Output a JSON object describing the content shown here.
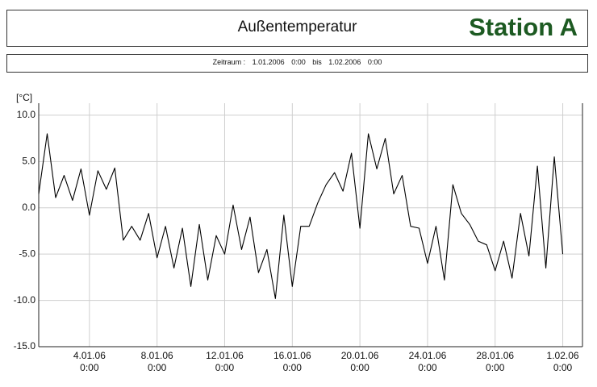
{
  "header": {
    "title": "Außentemperatur",
    "station": "Station A",
    "period": [
      "Zeitraum :",
      "1.01.2006",
      "0:00",
      "bis",
      "1.02.2006",
      "0:00"
    ]
  },
  "chart_data": {
    "type": "line",
    "y_label": "[°C]",
    "color": "#000000",
    "grid": true,
    "x": [
      "2006-01-01T00:00",
      "2006-01-01T12:00",
      "2006-01-02T00:00",
      "2006-01-02T12:00",
      "2006-01-03T00:00",
      "2006-01-03T12:00",
      "2006-01-04T00:00",
      "2006-01-04T12:00",
      "2006-01-05T00:00",
      "2006-01-05T12:00",
      "2006-01-06T00:00",
      "2006-01-06T12:00",
      "2006-01-07T00:00",
      "2006-01-07T12:00",
      "2006-01-08T00:00",
      "2006-01-08T12:00",
      "2006-01-09T00:00",
      "2006-01-09T12:00",
      "2006-01-10T00:00",
      "2006-01-10T12:00",
      "2006-01-11T00:00",
      "2006-01-11T12:00",
      "2006-01-12T00:00",
      "2006-01-12T12:00",
      "2006-01-13T00:00",
      "2006-01-13T12:00",
      "2006-01-14T00:00",
      "2006-01-14T12:00",
      "2006-01-15T00:00",
      "2006-01-15T12:00",
      "2006-01-16T00:00",
      "2006-01-16T12:00",
      "2006-01-17T00:00",
      "2006-01-17T12:00",
      "2006-01-18T00:00",
      "2006-01-18T12:00",
      "2006-01-19T00:00",
      "2006-01-19T12:00",
      "2006-01-20T00:00",
      "2006-01-20T12:00",
      "2006-01-21T00:00",
      "2006-01-21T12:00",
      "2006-01-22T00:00",
      "2006-01-22T12:00",
      "2006-01-23T00:00",
      "2006-01-23T12:00",
      "2006-01-24T00:00",
      "2006-01-24T12:00",
      "2006-01-25T00:00",
      "2006-01-25T12:00",
      "2006-01-26T00:00",
      "2006-01-26T12:00",
      "2006-01-27T00:00",
      "2006-01-27T12:00",
      "2006-01-28T00:00",
      "2006-01-28T12:00",
      "2006-01-29T00:00",
      "2006-01-29T12:00",
      "2006-01-30T00:00",
      "2006-01-30T12:00",
      "2006-01-31T00:00",
      "2006-01-31T12:00",
      "2006-02-01T00:00"
    ],
    "values": [
      1.5,
      8.0,
      1.1,
      3.5,
      0.8,
      4.2,
      -0.8,
      4.0,
      2.0,
      4.3,
      -3.5,
      -2.0,
      -3.5,
      -0.6,
      -5.4,
      -2.0,
      -6.5,
      -2.2,
      -8.5,
      -1.8,
      -7.8,
      -3.0,
      -5.0,
      0.3,
      -4.5,
      -1.0,
      -7.0,
      -4.5,
      -9.8,
      -0.8,
      -8.5,
      -2.0,
      -2.0,
      0.5,
      2.5,
      3.8,
      1.8,
      5.9,
      -2.2,
      8.0,
      4.2,
      7.5,
      1.5,
      3.5,
      -2.0,
      -2.2,
      -6.0,
      -2.0,
      -7.8,
      2.5,
      -0.6,
      -1.8,
      -3.6,
      -4.0,
      -6.8,
      -3.6,
      -7.6,
      -0.6,
      -5.2,
      4.5,
      -6.5,
      5.5,
      -5.0
    ],
    "xlim": [
      "2006-01-01T00:00",
      "2006-02-02T04:00"
    ],
    "xticks": [
      {
        "value": "2006-01-04T00:00",
        "label": "4.01.06\n0:00"
      },
      {
        "value": "2006-01-08T00:00",
        "label": "8.01.06\n0:00"
      },
      {
        "value": "2006-01-12T00:00",
        "label": "12.01.06\n0:00"
      },
      {
        "value": "2006-01-16T00:00",
        "label": "16.01.06\n0:00"
      },
      {
        "value": "2006-01-20T00:00",
        "label": "20.01.06\n0:00"
      },
      {
        "value": "2006-01-24T00:00",
        "label": "24.01.06\n0:00"
      },
      {
        "value": "2006-01-28T00:00",
        "label": "28.01.06\n0:00"
      },
      {
        "value": "2006-02-01T00:00",
        "label": "1.02.06\n0:00"
      }
    ],
    "ylim": [
      -15,
      11.3
    ],
    "yticks": [
      {
        "value": 10,
        "label": "10.0"
      },
      {
        "value": 5,
        "label": "5.0"
      },
      {
        "value": 0,
        "label": "0.0"
      },
      {
        "value": -5,
        "label": "-5.0"
      },
      {
        "value": -10,
        "label": "-10.0"
      },
      {
        "value": -15,
        "label": "-15.0"
      }
    ]
  }
}
